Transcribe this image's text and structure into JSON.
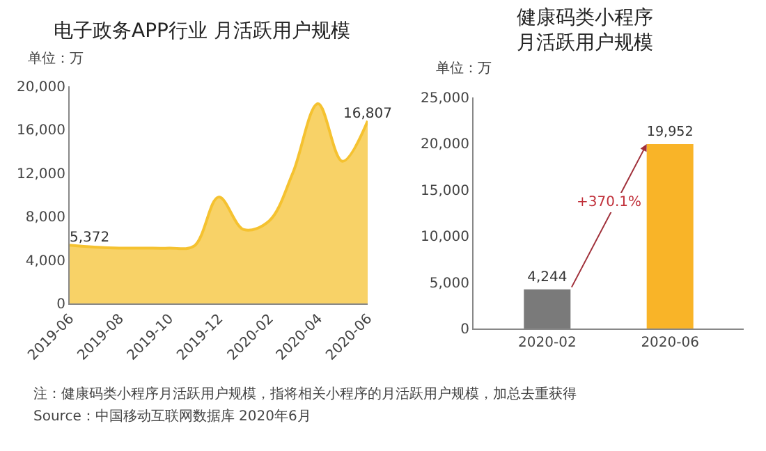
{
  "chart_data": [
    {
      "type": "area",
      "title": "电子政务APP行业 月活跃用户规模",
      "ylabel": "单位：万",
      "x": [
        "2019-06",
        "2019-07",
        "2019-08",
        "2019-09",
        "2019-10",
        "2019-11",
        "2019-12",
        "2020-01",
        "2020-02",
        "2020-03",
        "2020-04",
        "2020-05",
        "2020-06"
      ],
      "series": [
        {
          "color": "#f5c230",
          "values": [
            5372,
            5200,
            5100,
            5100,
            5100,
            5300,
            9800,
            6800,
            7600,
            12000,
            18400,
            13100,
            16807
          ],
          "value_labels": [
            "5,372",
            null,
            null,
            null,
            null,
            null,
            null,
            null,
            null,
            null,
            null,
            null,
            "16,807"
          ]
        }
      ],
      "xlim": [
        "2019-06",
        "2020-06"
      ],
      "xticks": [
        "2019-06",
        "2019-08",
        "2019-10",
        "2019-12",
        "2020-02",
        "2020-04",
        "2020-06"
      ],
      "ylim": [
        0,
        20000
      ],
      "yticks": [
        {
          "value": 0,
          "label": "0"
        },
        {
          "value": 4000,
          "label": "4,000"
        },
        {
          "value": 8000,
          "label": "8,000"
        },
        {
          "value": 12000,
          "label": "12,000"
        },
        {
          "value": 16000,
          "label": "16,000"
        },
        {
          "value": 20000,
          "label": "20,000"
        }
      ],
      "grid": false,
      "legend": false,
      "annotations": [
        "注：健康码类小程序月活跃用户规模，指将相关小程序的月活跃用户规模，加总去重获得",
        "Source：中国移动互联网数据库 2020年6月"
      ]
    },
    {
      "type": "bar",
      "title": "健康码类小程序月活跃用户规模",
      "ylabel": "单位：万",
      "categories": [
        "2020-02",
        "2020-06"
      ],
      "values": [
        4244,
        19952
      ],
      "colors": [
        "#7a7a7a",
        "#f9b428"
      ],
      "value_labels": [
        "4,244",
        "19,952"
      ],
      "ylim": [
        0,
        25000
      ],
      "yticks": [
        {
          "value": 0,
          "label": "0"
        },
        {
          "value": 5000,
          "label": "5,000"
        },
        {
          "value": 10000,
          "label": "10,000"
        },
        {
          "value": 15000,
          "label": "15,000"
        },
        {
          "value": 20000,
          "label": "20,000"
        },
        {
          "value": 25000,
          "label": "25,000"
        }
      ],
      "grid": false,
      "legend": false,
      "annotations": [
        "+370.1%"
      ]
    }
  ]
}
